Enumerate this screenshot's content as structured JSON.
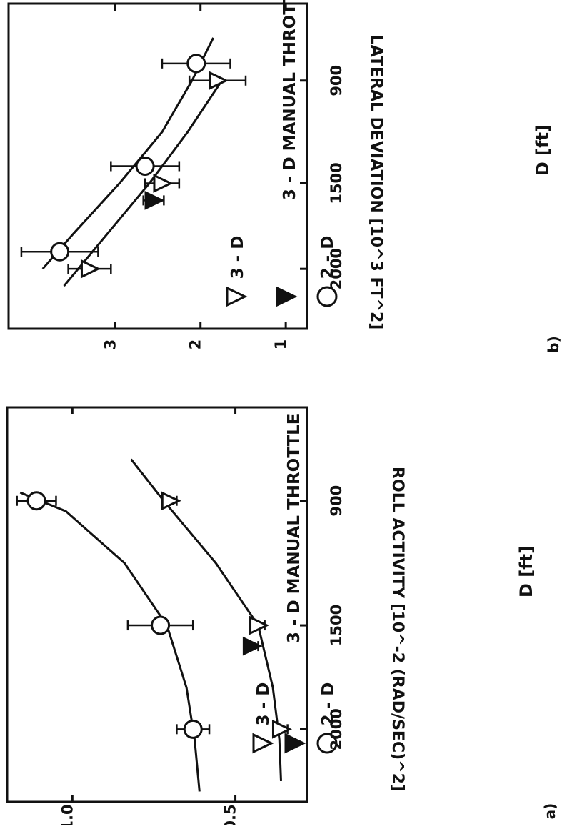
{
  "chart_data": [
    {
      "panel": "a)",
      "type": "scatter",
      "xlabel": "D [ft]",
      "ylabel": "ROLL ACTIVITY [10^-2 (RAD/SEC)^2]",
      "x_ticks": [
        "900",
        "1500",
        "2000"
      ],
      "y_ticks": [
        "0.5",
        "1.0"
      ],
      "xlim": [
        450,
        2350
      ],
      "ylim": [
        0.28,
        1.2
      ],
      "legend": [
        "3 - D",
        "3 - D MANUAL THROTTLE",
        "2 - D"
      ],
      "series": [
        {
          "name": "3 - D",
          "marker": "triangle-open",
          "x": [
            900,
            1500,
            2000
          ],
          "y": [
            0.7,
            0.43,
            0.36
          ],
          "err": [
            0.02,
            0.02,
            0.02
          ]
        },
        {
          "name": "3 - D MANUAL THROTTLE",
          "marker": "triangle-filled",
          "x": [
            1600
          ],
          "y": [
            0.45
          ],
          "err": [
            0.02
          ]
        },
        {
          "name": "2 - D",
          "marker": "circle-open",
          "x": [
            900,
            1500,
            2000
          ],
          "y": [
            1.11,
            0.73,
            0.63
          ],
          "err": [
            0.06,
            0.1,
            0.05
          ]
        }
      ],
      "fits": [
        {
          "x": [
            700,
            900,
            1200,
            1500,
            1800,
            2050,
            2250
          ],
          "y": [
            0.82,
            0.72,
            0.56,
            0.43,
            0.385,
            0.365,
            0.36
          ]
        },
        {
          "x": [
            860,
            950,
            1200,
            1500,
            1800,
            2050,
            2300
          ],
          "y": [
            1.16,
            1.02,
            0.84,
            0.71,
            0.65,
            0.625,
            0.61
          ]
        }
      ]
    },
    {
      "panel": "b)",
      "type": "scatter",
      "xlabel": "D [ft]",
      "ylabel": "LATERAL DEVIATION [10^3 FT^2]",
      "x_ticks": [
        "900",
        "1500",
        "2000"
      ],
      "y_ticks": [
        "1",
        "2",
        "3"
      ],
      "xlim": [
        450,
        2350
      ],
      "ylim": [
        0.75,
        4.25
      ],
      "legend": [
        "3 - D",
        "3 - D MANUAL THROTTLE",
        "2 - D"
      ],
      "series": [
        {
          "name": "3 - D",
          "marker": "triangle-open",
          "x": [
            900,
            1500,
            2000
          ],
          "y": [
            1.8,
            2.45,
            3.3
          ],
          "err": [
            0.33,
            0.2,
            0.25
          ]
        },
        {
          "name": "3 - D MANUAL THROTTLE",
          "marker": "triangle-filled",
          "x": [
            1600
          ],
          "y": [
            2.55
          ],
          "err": [
            0.12
          ]
        },
        {
          "name": "2 - D",
          "marker": "circle-open",
          "x": [
            800,
            1400,
            1900
          ],
          "y": [
            2.05,
            2.65,
            3.65
          ],
          "err": [
            0.4,
            0.4,
            0.45
          ]
        }
      ],
      "fits": [
        {
          "x": [
            900,
            1200,
            1500,
            1800,
            2100
          ],
          "y": [
            1.75,
            2.15,
            2.6,
            3.1,
            3.6
          ]
        },
        {
          "x": [
            650,
            900,
            1200,
            1500,
            1800,
            2000
          ],
          "y": [
            1.85,
            2.1,
            2.45,
            2.95,
            3.5,
            3.85
          ]
        }
      ]
    }
  ]
}
